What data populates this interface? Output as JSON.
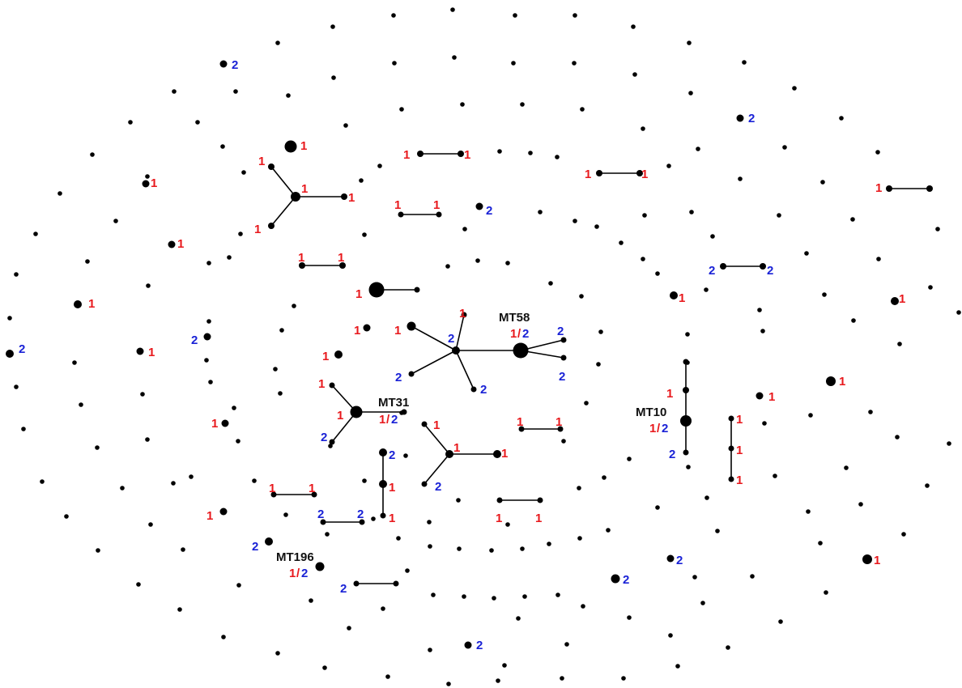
{
  "colors": {
    "node": "#000000",
    "edge": "#000000",
    "label_1": "#e8191d",
    "label_2": "#1a22d6",
    "background": "#ffffff"
  },
  "legend_glyphs": {
    "one": "1",
    "two": "2",
    "slash": "/"
  },
  "strain_labels": [
    "MT58",
    "MT31",
    "MT10",
    "MT196"
  ],
  "highlighted_nodes": [
    {
      "name": "MT58",
      "types": [
        "1",
        "2"
      ]
    },
    {
      "name": "MT31",
      "types": [
        "1",
        "2"
      ]
    },
    {
      "name": "MT10",
      "types": [
        "1",
        "2"
      ]
    },
    {
      "name": "MT196",
      "types": [
        "1",
        "2"
      ]
    }
  ]
}
